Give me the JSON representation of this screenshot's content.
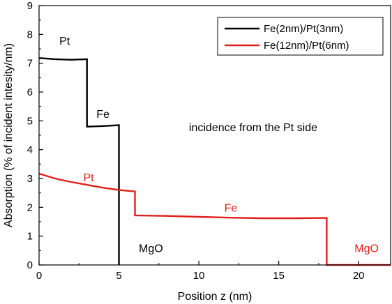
{
  "chart_data": {
    "type": "line",
    "title": "",
    "xlabel": "Position z (nm)",
    "ylabel": "Absorption (% of incident intesity/nm)",
    "xlim": [
      0,
      22
    ],
    "ylim": [
      0,
      9
    ],
    "x_ticks": [
      0,
      5,
      10,
      15,
      20
    ],
    "y_ticks": [
      0,
      1,
      2,
      3,
      4,
      5,
      6,
      7,
      8,
      9
    ],
    "grid": false,
    "legend_position": "top-right",
    "series": [
      {
        "name": "Fe(2nm)/Pt(3nm)",
        "color": "#000000",
        "points": [
          [
            0,
            7.18
          ],
          [
            1,
            7.14
          ],
          [
            2,
            7.12
          ],
          [
            3,
            7.14
          ],
          [
            3,
            4.8
          ],
          [
            4,
            4.82
          ],
          [
            5,
            4.85
          ],
          [
            5,
            0
          ]
        ]
      },
      {
        "name": "Fe(12nm)/Pt(6nm)",
        "color": "#e0201b",
        "points": [
          [
            0,
            3.17
          ],
          [
            1,
            3.0
          ],
          [
            2,
            2.88
          ],
          [
            3,
            2.78
          ],
          [
            4,
            2.68
          ],
          [
            5,
            2.6
          ],
          [
            6,
            2.55
          ],
          [
            6,
            1.72
          ],
          [
            8,
            1.7
          ],
          [
            10,
            1.67
          ],
          [
            12,
            1.64
          ],
          [
            14,
            1.62
          ],
          [
            16,
            1.62
          ],
          [
            18,
            1.63
          ],
          [
            18,
            0
          ],
          [
            22,
            0
          ]
        ]
      }
    ],
    "annotations": [
      {
        "text": "Pt",
        "x": 1.6,
        "y": 7.65,
        "color": "#000000"
      },
      {
        "text": "Fe",
        "x": 4.0,
        "y": 5.1,
        "color": "#000000"
      },
      {
        "text": "incidence from the Pt side",
        "x": 13.4,
        "y": 4.65,
        "color": "#000000"
      },
      {
        "text": "Pt",
        "x": 3.1,
        "y": 2.9,
        "color": "#e0201b"
      },
      {
        "text": "Fe",
        "x": 12.0,
        "y": 1.85,
        "color": "#e0201b"
      },
      {
        "text": "MgO",
        "x": 7.0,
        "y": 0.45,
        "color": "#000000"
      },
      {
        "text": "MgO",
        "x": 20.5,
        "y": 0.45,
        "color": "#e0201b"
      }
    ]
  }
}
